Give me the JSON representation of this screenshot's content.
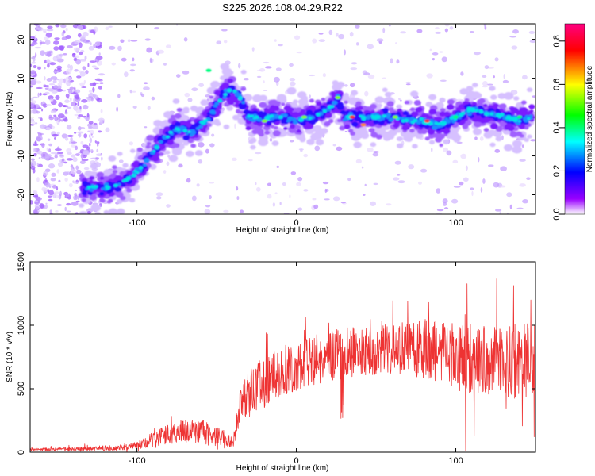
{
  "figure_title": "S225.2026.108.04.29.R22",
  "chart_data": [
    {
      "type": "heatmap",
      "title": "",
      "xlabel": "Height of straight line (km)",
      "ylabel": "Frequency (Hz)",
      "xlim": [
        -167,
        150
      ],
      "ylim": [
        -25,
        24
      ],
      "x_ticks": [
        -100,
        0,
        100
      ],
      "y_ticks": [
        -20,
        -10,
        0,
        10,
        20
      ],
      "ridge": {
        "x": [
          -135,
          -125,
          -115,
          -105,
          -95,
          -85,
          -75,
          -65,
          -55,
          -45,
          -40,
          -35,
          -30,
          -20,
          -10,
          0,
          10,
          20,
          26,
          30,
          40,
          50,
          60,
          70,
          80,
          90,
          100,
          110,
          120,
          130,
          140,
          148
        ],
        "y": [
          -18,
          -18,
          -18,
          -16,
          -12,
          -6,
          -3,
          -4,
          0,
          6,
          7,
          5,
          0,
          0,
          0,
          -1,
          0,
          2,
          5,
          0,
          0,
          0,
          0,
          -1,
          -1,
          -2,
          0,
          2,
          1,
          0,
          -1,
          0
        ]
      },
      "colorbar": {
        "label": "Normalized spectral amplitude",
        "range": [
          0.0,
          0.88
        ],
        "ticks": [
          0.0,
          0.2,
          0.4,
          0.6,
          0.8
        ],
        "colormap": [
          "#ffffff",
          "#9900ff",
          "#0000ff",
          "#00ffff",
          "#00ff00",
          "#ffff00",
          "#ff0000",
          "#ff0080"
        ]
      }
    },
    {
      "type": "line",
      "title": "",
      "xlabel": "Height of straight line (km)",
      "ylabel": "SNR (10 * v/v)",
      "xlim": [
        -167,
        150
      ],
      "ylim": [
        0,
        1500
      ],
      "x_ticks": [
        -100,
        0,
        100
      ],
      "y_ticks": [
        0,
        500,
        1000,
        1500
      ],
      "line_color": "#ee3333",
      "envelope": {
        "x": [
          -167,
          -140,
          -110,
          -100,
          -90,
          -80,
          -70,
          -60,
          -50,
          -40,
          -35,
          -30,
          -20,
          -10,
          0,
          10,
          20,
          30,
          40,
          60,
          80,
          100,
          120,
          140,
          150
        ],
        "low": [
          10,
          10,
          15,
          20,
          40,
          60,
          70,
          60,
          40,
          20,
          250,
          300,
          350,
          420,
          470,
          520,
          550,
          580,
          600,
          620,
          580,
          480,
          430,
          420,
          430
        ],
        "high": [
          30,
          40,
          60,
          80,
          160,
          220,
          260,
          260,
          200,
          120,
          520,
          650,
          760,
          830,
          880,
          930,
          950,
          980,
          1000,
          1050,
          1050,
          1020,
          1000,
          1050,
          1000
        ]
      }
    }
  ]
}
